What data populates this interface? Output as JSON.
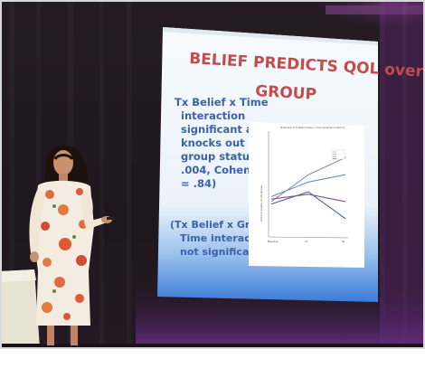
{
  "slide": {
    "title_line1": "BELIEF PREDICTS QOL over",
    "title_line2": "GROUP",
    "left_text": [
      "Tx Belief x Time",
      "interaction",
      "significant  and",
      "knocks out",
      "group status (p =",
      ".004, Cohen’s d",
      "= .84)"
    ],
    "note_text": [
      "(Tx Belief x Group x",
      "Time interaction",
      "not significant)"
    ]
  },
  "chart_data": {
    "type": "line",
    "title": "Moderation of Tx Belief x Group x Time Interaction on FACT-G",
    "ylabel": "FACT-G Quality of Life Scores",
    "categories": [
      "Baseline",
      "12",
      "24"
    ],
    "series": [
      {
        "values": [
          -0.2,
          0.9,
          1.6
        ]
      },
      {
        "values": [
          0.0,
          0.6,
          0.9
        ]
      },
      {
        "values": [
          -0.1,
          0.1,
          -0.2
        ]
      },
      {
        "values": [
          -0.3,
          0.2,
          -0.9
        ]
      }
    ],
    "series_colors": [
      "#8c8dbf",
      "#6e8fb4",
      "#8a4f8e",
      "#4a5fa0"
    ],
    "ylim": [
      -1.5,
      2.5
    ],
    "legend": "top-right"
  }
}
